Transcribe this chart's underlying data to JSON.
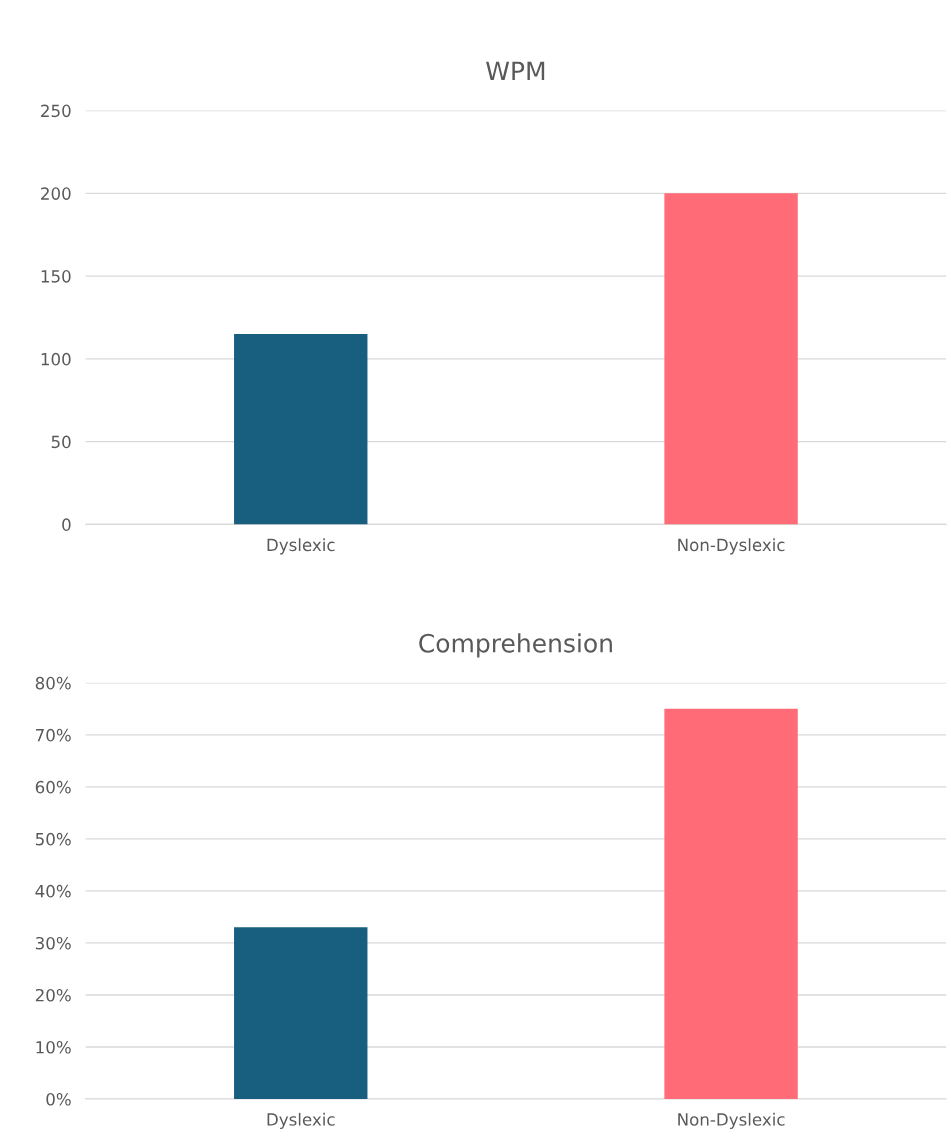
{
  "chart_data": [
    {
      "type": "bar",
      "title": "WPM",
      "categories": [
        "Dyslexic",
        "Non-Dyslexic"
      ],
      "colors": [
        "#175e7f",
        "#ff6b77"
      ],
      "values": [
        115,
        200
      ],
      "ylim": [
        0,
        250
      ],
      "yticks": [
        0,
        50,
        100,
        150,
        200,
        250
      ],
      "grid": "y"
    },
    {
      "type": "bar",
      "title": "Comprehension",
      "categories": [
        "Dyslexic",
        "Non-Dyslexic"
      ],
      "colors": [
        "#175e7f",
        "#ff6b77"
      ],
      "values": [
        33,
        75
      ],
      "ylim": [
        0,
        80
      ],
      "yticks": [
        {
          "value": 0,
          "label": "0%"
        },
        {
          "value": 10,
          "label": "10%"
        },
        {
          "value": 20,
          "label": "20%"
        },
        {
          "value": 30,
          "label": "30%"
        },
        {
          "value": 40,
          "label": "40%"
        },
        {
          "value": 50,
          "label": "50%"
        },
        {
          "value": 60,
          "label": "60%"
        },
        {
          "value": 70,
          "label": "70%"
        },
        {
          "value": 80,
          "label": "80%"
        }
      ],
      "grid": "y"
    }
  ]
}
